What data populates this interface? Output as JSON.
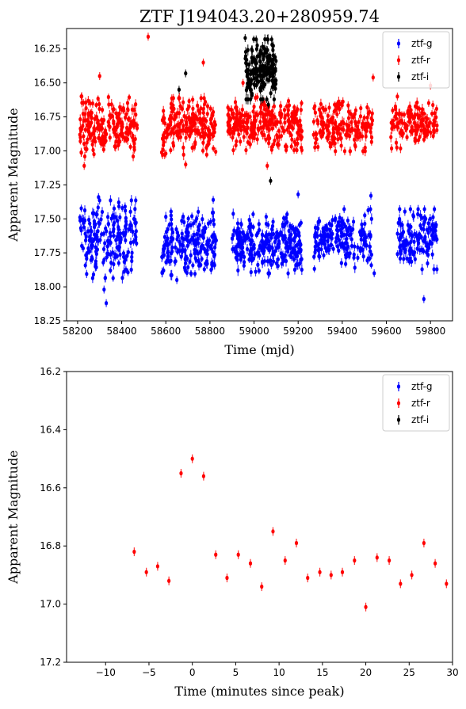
{
  "chart_data": [
    {
      "type": "scatter",
      "title": "ZTF J194043.20+280959.74",
      "xlabel": "Time (mjd)",
      "ylabel": "Apparent Magnitude",
      "xlim": [
        58150,
        59900
      ],
      "ylim": [
        18.25,
        16.1
      ],
      "y_inverted": true,
      "xticks": [
        58200,
        58400,
        58600,
        58800,
        59000,
        59200,
        59400,
        59600,
        59800
      ],
      "yticks": [
        16.25,
        16.5,
        16.75,
        17.0,
        17.25,
        17.5,
        17.75,
        18.0,
        18.25
      ],
      "ytick_labels": [
        "16.25",
        "16.50",
        "16.75",
        "17.00",
        "17.25",
        "17.50",
        "17.75",
        "18.00",
        "18.25"
      ],
      "legend_placement": "top-right",
      "grid": false,
      "series": [
        {
          "name": "ztf-g",
          "color": "#0000ff",
          "segments": [
            {
              "t_min": 58210,
              "t_max": 58470,
              "mag_center": 17.65,
              "mag_spread": 0.22,
              "count": 190
            },
            {
              "t_min": 58580,
              "t_max": 58830,
              "mag_center": 17.68,
              "mag_spread": 0.18,
              "count": 190
            },
            {
              "t_min": 58900,
              "t_max": 59220,
              "mag_center": 17.68,
              "mag_spread": 0.17,
              "count": 260
            },
            {
              "t_min": 59270,
              "t_max": 59540,
              "mag_center": 17.65,
              "mag_spread": 0.17,
              "count": 170
            },
            {
              "t_min": 59650,
              "t_max": 59830,
              "mag_center": 17.65,
              "mag_spread": 0.17,
              "count": 130
            }
          ],
          "highlights": [
            {
              "x": 58330,
              "y": 18.12
            },
            {
              "x": 58320,
              "y": 18.02
            },
            {
              "x": 59770,
              "y": 18.09
            },
            {
              "x": 59545,
              "y": 17.9
            },
            {
              "x": 58590,
              "y": 17.88
            },
            {
              "x": 58650,
              "y": 17.95
            },
            {
              "x": 59200,
              "y": 17.32
            },
            {
              "x": 59530,
              "y": 17.33
            },
            {
              "x": 58295,
              "y": 17.34
            },
            {
              "x": 58815,
              "y": 17.36
            },
            {
              "x": 58940,
              "y": 17.8
            },
            {
              "x": 59170,
              "y": 17.78
            }
          ]
        },
        {
          "name": "ztf-r",
          "color": "#ff0000",
          "segments": [
            {
              "t_min": 58210,
              "t_max": 58470,
              "mag_center": 16.82,
              "mag_spread": 0.17,
              "count": 200
            },
            {
              "t_min": 58580,
              "t_max": 58830,
              "mag_center": 16.82,
              "mag_spread": 0.16,
              "count": 190
            },
            {
              "t_min": 58880,
              "t_max": 59220,
              "mag_center": 16.8,
              "mag_spread": 0.15,
              "count": 270
            },
            {
              "t_min": 59270,
              "t_max": 59540,
              "mag_center": 16.82,
              "mag_spread": 0.14,
              "count": 170
            },
            {
              "t_min": 59620,
              "t_max": 59830,
              "mag_center": 16.8,
              "mag_spread": 0.14,
              "count": 130
            }
          ],
          "highlights": [
            {
              "x": 58520,
              "y": 16.16
            },
            {
              "x": 58770,
              "y": 16.35
            },
            {
              "x": 58230,
              "y": 17.11
            },
            {
              "x": 58690,
              "y": 17.1
            },
            {
              "x": 59060,
              "y": 17.11
            },
            {
              "x": 58920,
              "y": 16.93
            },
            {
              "x": 58600,
              "y": 17.02
            },
            {
              "x": 58300,
              "y": 16.45
            },
            {
              "x": 59800,
              "y": 16.52
            },
            {
              "x": 59650,
              "y": 16.6
            },
            {
              "x": 59540,
              "y": 16.46
            },
            {
              "x": 58950,
              "y": 16.5
            }
          ]
        },
        {
          "name": "ztf-i",
          "color": "#000000",
          "segments": [
            {
              "t_min": 58960,
              "t_max": 59100,
              "mag_center": 16.4,
              "mag_spread": 0.17,
              "count": 170
            }
          ],
          "highlights": [
            {
              "x": 59075,
              "y": 17.22
            },
            {
              "x": 58690,
              "y": 16.43
            },
            {
              "x": 58660,
              "y": 16.55
            },
            {
              "x": 58960,
              "y": 16.17
            },
            {
              "x": 59010,
              "y": 16.18
            },
            {
              "x": 59080,
              "y": 16.18
            },
            {
              "x": 59040,
              "y": 16.62
            },
            {
              "x": 59065,
              "y": 16.66
            }
          ]
        }
      ]
    },
    {
      "type": "scatter",
      "title": "",
      "xlabel": "Time (minutes since peak)",
      "ylabel": "Apparent Magnitude",
      "xlim": [
        -14.5,
        30
      ],
      "ylim": [
        17.2,
        16.2
      ],
      "y_inverted": true,
      "xticks": [
        -10,
        -5,
        0,
        5,
        10,
        15,
        20,
        25,
        30
      ],
      "xtick_labels": [
        "−10",
        "−5",
        "0",
        "5",
        "10",
        "15",
        "20",
        "25",
        "30"
      ],
      "yticks": [
        16.2,
        16.4,
        16.6,
        16.8,
        17.0,
        17.2
      ],
      "ytick_labels": [
        "16.2",
        "16.4",
        "16.6",
        "16.8",
        "17.0",
        "17.2"
      ],
      "legend_placement": "top-right",
      "grid": false,
      "legend": [
        "ztf-g",
        "ztf-r",
        "ztf-i"
      ],
      "legend_colors": [
        "#0000ff",
        "#ff0000",
        "#000000"
      ],
      "series": [
        {
          "name": "ztf-r",
          "color": "#ff0000",
          "x": [
            -6.7,
            -5.3,
            -4.0,
            -2.7,
            -1.3,
            0.0,
            1.3,
            2.7,
            4.0,
            5.3,
            6.7,
            8.0,
            9.3,
            10.7,
            12.0,
            13.3,
            14.7,
            16.0,
            17.3,
            18.7,
            20.0,
            21.3,
            22.7,
            24.0,
            25.3,
            26.7,
            28.0,
            29.3
          ],
          "y": [
            16.82,
            16.89,
            16.87,
            16.92,
            16.55,
            16.5,
            16.56,
            16.83,
            16.91,
            16.83,
            16.86,
            16.94,
            16.75,
            16.85,
            16.79,
            16.91,
            16.89,
            16.9,
            16.89,
            16.85,
            17.01,
            16.84,
            16.85,
            16.93,
            16.9,
            16.79,
            16.86,
            16.93
          ],
          "yerr": 0.015
        }
      ]
    }
  ]
}
